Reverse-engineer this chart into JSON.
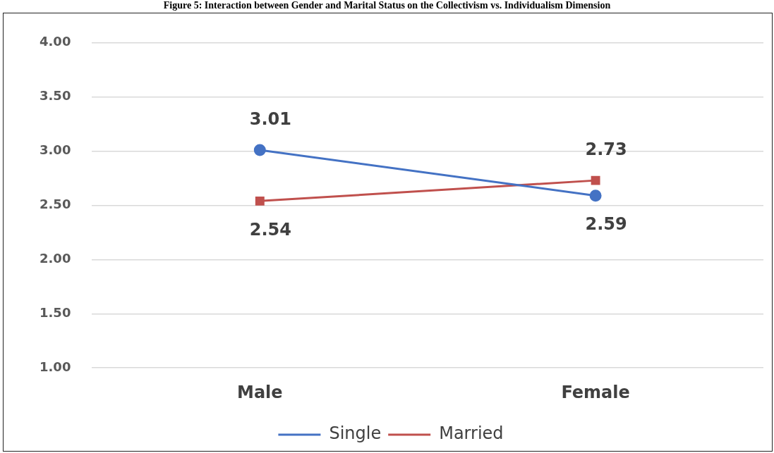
{
  "chart_data": {
    "type": "line",
    "title": "Figure 5: Interaction between Gender and Marital Status on the Collectivism vs. Individualism Dimension",
    "categories": [
      "Male",
      "Female"
    ],
    "series": [
      {
        "name": "Single",
        "color": "#4472c4",
        "values": [
          3.01,
          2.59
        ],
        "marker": "circle"
      },
      {
        "name": "Married",
        "color": "#c0504d",
        "values": [
          2.54,
          2.73
        ],
        "marker": "square"
      }
    ],
    "ylim": [
      1,
      4
    ],
    "yticks": [
      {
        "value": 1,
        "label": "1.00"
      },
      {
        "value": 1.5,
        "label": "1.50"
      },
      {
        "value": 2,
        "label": "2.00"
      },
      {
        "value": 2.5,
        "label": "2.50"
      },
      {
        "value": 3,
        "label": "3.00"
      },
      {
        "value": 3.5,
        "label": "3.50"
      },
      {
        "value": 4,
        "label": "4.00"
      }
    ],
    "grid": "y",
    "legend": "bottom",
    "data_labels": true
  }
}
